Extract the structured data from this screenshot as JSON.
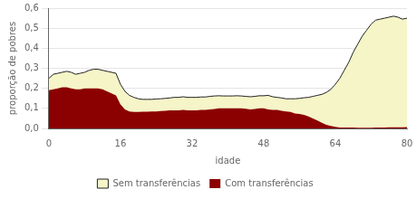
{
  "chart_data": {
    "type": "area",
    "x": [
      0,
      1,
      2,
      3,
      4,
      5,
      6,
      7,
      8,
      9,
      10,
      11,
      12,
      13,
      14,
      15,
      16,
      17,
      18,
      19,
      20,
      21,
      22,
      23,
      24,
      25,
      26,
      27,
      28,
      29,
      30,
      31,
      32,
      33,
      34,
      35,
      36,
      37,
      38,
      39,
      40,
      41,
      42,
      43,
      44,
      45,
      46,
      47,
      48,
      49,
      50,
      51,
      52,
      53,
      54,
      55,
      56,
      57,
      58,
      59,
      60,
      61,
      62,
      63,
      64,
      65,
      66,
      67,
      68,
      69,
      70,
      71,
      72,
      73,
      74,
      75,
      76,
      77,
      78,
      79,
      80
    ],
    "series": [
      {
        "name": "Sem transferências",
        "color": "#f5f5c8",
        "values": [
          0.25,
          0.27,
          0.275,
          0.28,
          0.285,
          0.28,
          0.27,
          0.275,
          0.28,
          0.29,
          0.295,
          0.295,
          0.29,
          0.285,
          0.28,
          0.275,
          0.22,
          0.185,
          0.165,
          0.155,
          0.148,
          0.145,
          0.145,
          0.145,
          0.147,
          0.148,
          0.15,
          0.152,
          0.155,
          0.155,
          0.158,
          0.155,
          0.155,
          0.155,
          0.157,
          0.157,
          0.16,
          0.162,
          0.163,
          0.162,
          0.162,
          0.162,
          0.163,
          0.162,
          0.16,
          0.158,
          0.16,
          0.163,
          0.163,
          0.165,
          0.158,
          0.155,
          0.152,
          0.148,
          0.148,
          0.148,
          0.15,
          0.153,
          0.155,
          0.16,
          0.165,
          0.17,
          0.18,
          0.195,
          0.22,
          0.25,
          0.29,
          0.33,
          0.38,
          0.42,
          0.46,
          0.49,
          0.52,
          0.54,
          0.545,
          0.55,
          0.555,
          0.56,
          0.555,
          0.545,
          0.55
        ]
      },
      {
        "name": "Com transferências",
        "color": "#8b0000",
        "values": [
          0.19,
          0.195,
          0.2,
          0.205,
          0.205,
          0.2,
          0.195,
          0.195,
          0.2,
          0.2,
          0.2,
          0.2,
          0.195,
          0.185,
          0.175,
          0.165,
          0.12,
          0.095,
          0.085,
          0.082,
          0.082,
          0.083,
          0.083,
          0.085,
          0.085,
          0.087,
          0.088,
          0.09,
          0.09,
          0.09,
          0.092,
          0.09,
          0.09,
          0.09,
          0.092,
          0.092,
          0.095,
          0.097,
          0.1,
          0.1,
          0.1,
          0.1,
          0.1,
          0.1,
          0.098,
          0.095,
          0.097,
          0.1,
          0.1,
          0.095,
          0.092,
          0.092,
          0.088,
          0.085,
          0.082,
          0.075,
          0.072,
          0.068,
          0.06,
          0.05,
          0.04,
          0.028,
          0.018,
          0.012,
          0.008,
          0.005,
          0.005,
          0.004,
          0.004,
          0.003,
          0.003,
          0.003,
          0.003,
          0.004,
          0.005,
          0.005,
          0.006,
          0.006,
          0.006,
          0.006,
          0.007
        ]
      }
    ],
    "xlabel": "idade",
    "ylabel": "proporção de pobres",
    "xlim": [
      0,
      80
    ],
    "ylim": [
      0.0,
      0.6
    ],
    "xticks": [
      0,
      16,
      32,
      48,
      64,
      80
    ],
    "yticks": [
      {
        "value": 0.0,
        "label": "0,0"
      },
      {
        "value": 0.1,
        "label": "0,1"
      },
      {
        "value": 0.2,
        "label": "0,2"
      },
      {
        "value": 0.3,
        "label": "0,3"
      },
      {
        "value": 0.4,
        "label": "0,4"
      },
      {
        "value": 0.5,
        "label": "0,5"
      },
      {
        "value": 0.6,
        "label": "0,6"
      }
    ],
    "grid": "y",
    "legend": "bottom"
  }
}
